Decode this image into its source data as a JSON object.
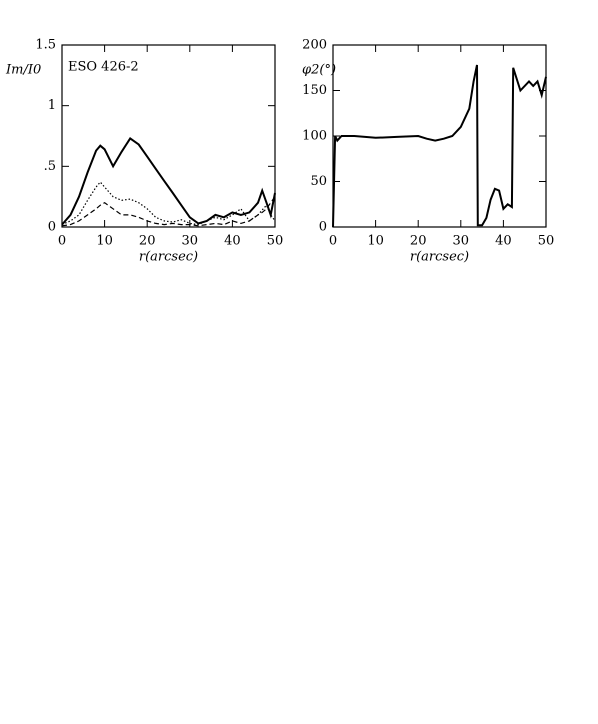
{
  "chart_data": [
    {
      "type": "line",
      "ylabel": "Im/I0",
      "annotation": "ESO 426-2",
      "xlabel": "r(arcsec)",
      "x": [
        0,
        2,
        4,
        6,
        8,
        9,
        10,
        12,
        14,
        16,
        18,
        20,
        22,
        24,
        26,
        28,
        30,
        32,
        34,
        36,
        38,
        40,
        42,
        44,
        46,
        47,
        48,
        49,
        50
      ],
      "series": [
        {
          "color": "#000000",
          "style": "solid",
          "values": [
            0.02,
            0.1,
            0.25,
            0.45,
            0.63,
            0.67,
            0.64,
            0.5,
            0.62,
            0.73,
            0.68,
            0.58,
            0.48,
            0.38,
            0.28,
            0.18,
            0.08,
            0.03,
            0.05,
            0.1,
            0.08,
            0.12,
            0.1,
            0.12,
            0.2,
            0.3,
            0.2,
            0.1,
            0.28
          ]
        },
        {
          "color": "#000000",
          "style": "dotted",
          "values": [
            0.02,
            0.05,
            0.1,
            0.22,
            0.33,
            0.37,
            0.33,
            0.25,
            0.22,
            0.23,
            0.2,
            0.15,
            0.08,
            0.05,
            0.04,
            0.06,
            0.03,
            0.02,
            0.05,
            0.08,
            0.06,
            0.1,
            0.15,
            0.05,
            0.1,
            0.14,
            0.18,
            0.1,
            0.05
          ]
        },
        {
          "color": "#000000",
          "style": "dashed",
          "values": [
            0.01,
            0.02,
            0.05,
            0.1,
            0.15,
            0.18,
            0.2,
            0.15,
            0.1,
            0.1,
            0.08,
            0.05,
            0.03,
            0.02,
            0.03,
            0.02,
            0.02,
            0.01,
            0.02,
            0.03,
            0.02,
            0.05,
            0.03,
            0.05,
            0.1,
            0.12,
            0.15,
            0.2,
            0.25
          ]
        }
      ],
      "xlim": [
        0,
        50
      ],
      "xticks": [
        0,
        10,
        20,
        30,
        40,
        50
      ],
      "ylim": [
        0,
        1.5
      ],
      "yticks": [
        0,
        {
          "value": 0.5,
          "label": ".5"
        },
        1,
        1.5
      ]
    },
    {
      "type": "line",
      "ylabel": "φ2(°)",
      "xlabel": "r(arcsec)",
      "x": [
        0,
        0.5,
        1,
        2,
        5,
        10,
        15,
        20,
        22,
        24,
        26,
        28,
        30,
        32,
        33,
        33.8,
        34,
        35,
        36,
        37,
        38,
        39,
        40,
        41,
        42,
        42.3,
        44,
        46,
        47,
        48,
        49,
        50
      ],
      "series": [
        {
          "color": "#000000",
          "style": "solid",
          "values": [
            0,
            100,
            95,
            100,
            100,
            98,
            99,
            100,
            97,
            95,
            97,
            100,
            110,
            130,
            160,
            178,
            2,
            2,
            10,
            30,
            42,
            40,
            20,
            25,
            22,
            175,
            150,
            160,
            155,
            160,
            145,
            165
          ]
        }
      ],
      "xlim": [
        0,
        50
      ],
      "xticks": [
        0,
        10,
        20,
        30,
        40,
        50
      ],
      "ylim": [
        0,
        200
      ],
      "yticks": [
        0,
        50,
        100,
        150,
        200
      ]
    }
  ]
}
